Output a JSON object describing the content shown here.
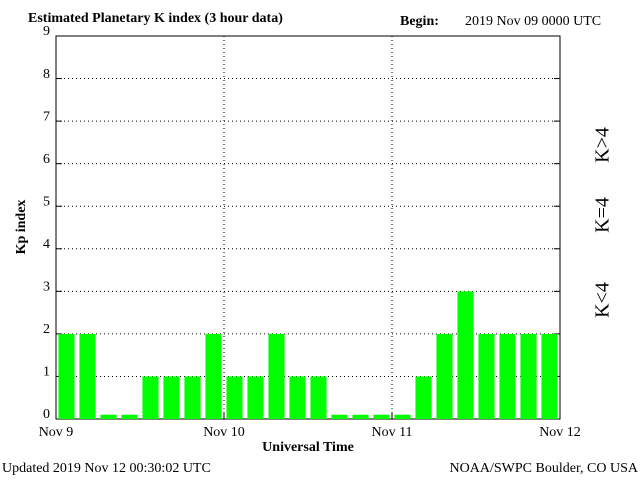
{
  "chart_data": {
    "type": "bar",
    "title": "Estimated Planetary K index (3 hour data)",
    "begin_label": "Begin:",
    "begin": "2019 Nov 09 0000 UTC",
    "x_label": "Universal Time",
    "y_label": "Kp index",
    "updated": "Updated 2019 Nov 12 00:30:02 UTC",
    "source": "NOAA/SWPC Boulder, CO USA",
    "x": [
      1.5,
      4.5,
      7.5,
      10.5,
      13.5,
      16.5,
      19.5,
      22.5,
      25.5,
      28.5,
      31.5,
      34.5,
      37.5,
      40.5,
      43.5,
      46.5,
      49.5,
      52.5,
      55.5,
      58.5,
      61.5,
      64.5,
      67.5,
      70.5
    ],
    "bar_width": 2.3,
    "series": [
      {
        "name": "Kp",
        "color": "#00ff00",
        "values": [
          2,
          2,
          0.1,
          0.1,
          1,
          1,
          1,
          2,
          1,
          1,
          2,
          1,
          1,
          0.1,
          0.1,
          0.1,
          0.1,
          1,
          2,
          3,
          2,
          2,
          2,
          2
        ]
      }
    ],
    "xlim": [
      0,
      72
    ],
    "xticks": [
      {
        "value": 0,
        "label": "Nov 9"
      },
      {
        "value": 24,
        "label": "Nov 10"
      },
      {
        "value": 48,
        "label": "Nov 11"
      },
      {
        "value": 72,
        "label": "Nov 12"
      }
    ],
    "ylim": [
      0,
      9
    ],
    "yticks": [
      0,
      1,
      2,
      3,
      4,
      5,
      6,
      7,
      8,
      9
    ],
    "grid": true,
    "legend": [
      {
        "label": "K<4",
        "color": "#00ee00"
      },
      {
        "label": "K=4",
        "color": "#ffcc00"
      },
      {
        "label": "K>4",
        "color": "#ff2200"
      }
    ]
  }
}
